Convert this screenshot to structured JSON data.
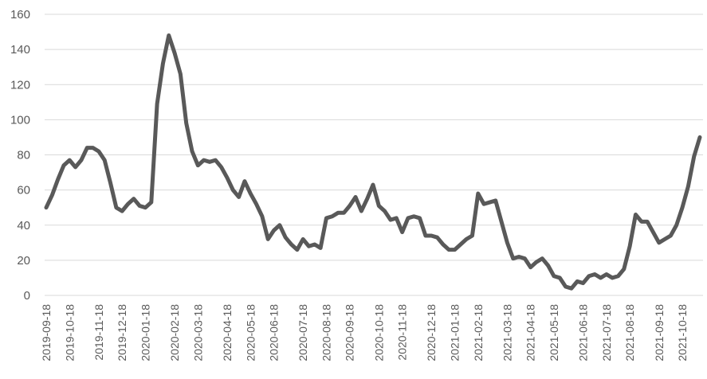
{
  "chart_data": {
    "type": "line",
    "categories": [
      "2019-09-18",
      null,
      null,
      null,
      "2019-10-18",
      null,
      null,
      null,
      null,
      "2019-11-18",
      null,
      null,
      null,
      "2019-12-18",
      null,
      null,
      null,
      "2020-01-18",
      null,
      null,
      null,
      null,
      "2020-02-18",
      null,
      null,
      null,
      "2020-03-18",
      null,
      null,
      null,
      null,
      "2020-04-18",
      null,
      null,
      null,
      "2020-05-18",
      null,
      null,
      null,
      "2020-06-18",
      null,
      null,
      null,
      null,
      "2020-07-18",
      null,
      null,
      null,
      "2020-08-18",
      null,
      null,
      null,
      "2020-09-18",
      null,
      null,
      null,
      null,
      "2020-10-18",
      null,
      null,
      null,
      "2020-11-18",
      null,
      null,
      null,
      null,
      "2020-12-18",
      null,
      null,
      null,
      "2021-01-18",
      null,
      null,
      null,
      "2021-02-18",
      null,
      null,
      null,
      null,
      "2021-03-18",
      null,
      null,
      null,
      "2021-04-18",
      null,
      null,
      null,
      "2021-05-18",
      null,
      null,
      null,
      null,
      "2021-06-18",
      null,
      null,
      null,
      "2021-07-18",
      null,
      null,
      null,
      "2021-08-18",
      null,
      null,
      null,
      null,
      "2021-09-18",
      null,
      null,
      null,
      "2021-10-18",
      null,
      null,
      null
    ],
    "values": [
      50,
      57,
      66,
      74,
      77,
      73,
      77,
      84,
      84,
      82,
      77,
      64,
      50,
      48,
      52,
      55,
      51,
      50,
      53,
      109,
      132,
      148,
      138,
      126,
      98,
      82,
      74,
      77,
      76,
      77,
      73,
      67,
      60,
      56,
      65,
      58,
      52,
      45,
      32,
      37,
      40,
      33,
      29,
      26,
      32,
      28,
      29,
      27,
      44,
      45,
      47,
      47,
      51,
      56,
      48,
      55,
      63,
      51,
      48,
      43,
      44,
      36,
      44,
      45,
      44,
      34,
      34,
      33,
      29,
      26,
      26,
      29,
      32,
      34,
      58,
      52,
      53,
      54,
      42,
      30,
      21,
      22,
      21,
      16,
      19,
      21,
      17,
      11,
      10,
      5,
      4,
      8,
      7,
      11,
      12,
      10,
      12,
      10,
      11,
      15,
      28,
      46,
      42,
      42,
      36,
      30,
      32,
      34,
      40,
      50,
      62,
      79,
      90
    ],
    "color": "#595959",
    "ylim": [
      0,
      160
    ],
    "yticks": [
      0,
      20,
      40,
      60,
      80,
      100,
      120,
      140,
      160
    ],
    "grid": true
  }
}
